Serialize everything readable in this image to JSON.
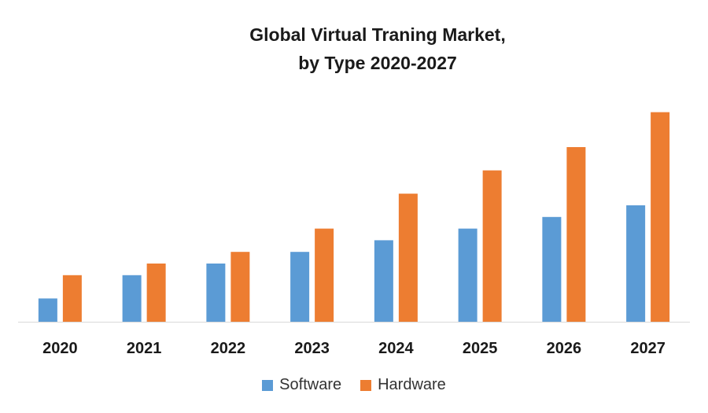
{
  "chart_data": {
    "type": "bar",
    "title": "Global Virtual Traning Market,",
    "subtitle": "by Type 2020-2027",
    "categories": [
      "2020",
      "2021",
      "2022",
      "2023",
      "2024",
      "2025",
      "2026",
      "2027"
    ],
    "series": [
      {
        "name": "Software",
        "color": "#5b9bd5",
        "values": [
          2,
          4,
          5,
          6,
          7,
          8,
          9,
          10
        ]
      },
      {
        "name": "Hardware",
        "color": "#ed7d31",
        "values": [
          4,
          5,
          6,
          8,
          11,
          13,
          15,
          18
        ]
      }
    ],
    "ylim": [
      0,
      20
    ],
    "grid": false,
    "legend_position": "bottom"
  }
}
